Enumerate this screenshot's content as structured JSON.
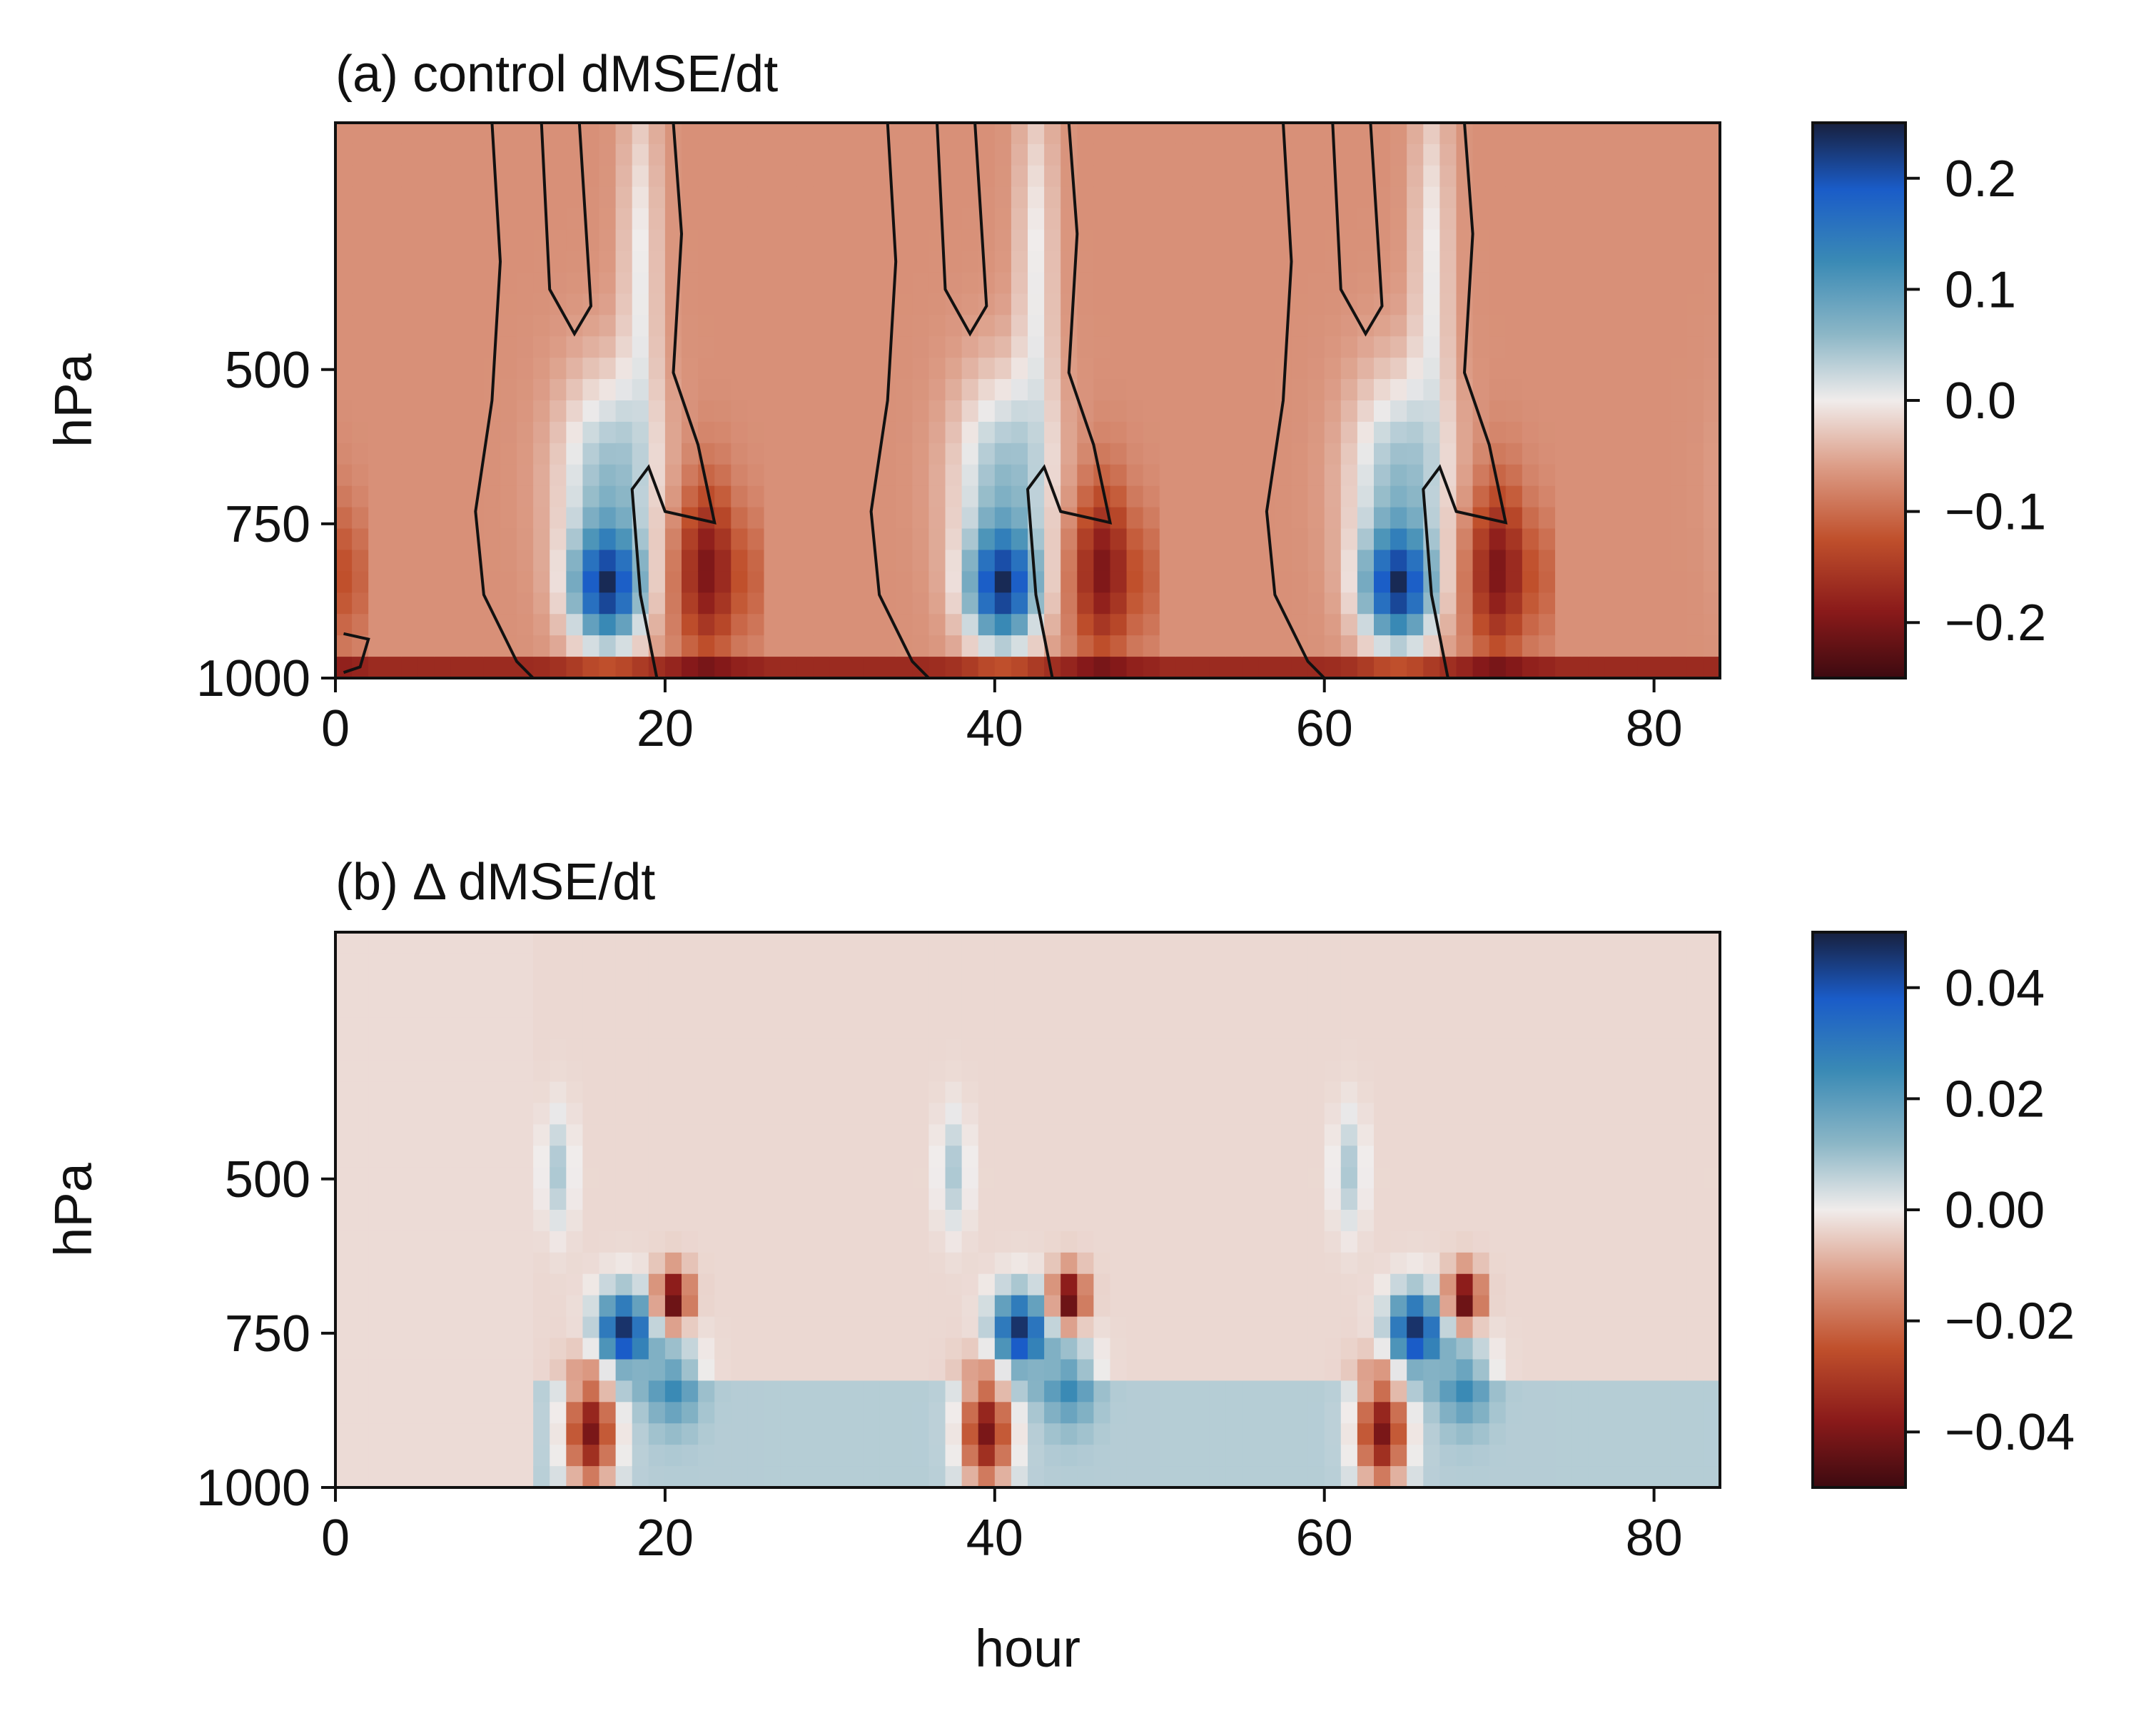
{
  "chart_data": [
    {
      "type": "heatmap",
      "title": "(a) control dMSE/dt",
      "xlabel": "",
      "ylabel": "hPa",
      "xlim": [
        0,
        84
      ],
      "ylim": [
        1000,
        100
      ],
      "yaxis": "pressure, inverted (1000 at bottom)",
      "x_ticks": [
        "0",
        "20",
        "40",
        "60",
        "80"
      ],
      "y_ticks": [
        "500",
        "750",
        "1000"
      ],
      "colorbar": {
        "range": [
          -0.25,
          0.25
        ],
        "ticks": [
          "0.2",
          "0.1",
          "0.0",
          "−0.1",
          "−0.2"
        ],
        "colormap": "diverging dark-red / white / dark-blue"
      },
      "contour": "zero line drawn in black",
      "features": [
        {
          "hours": [
            12,
            20
          ],
          "levels": [
            650,
            1000
          ],
          "value": 0.25,
          "note": "strong positive core ~850 hPa"
        },
        {
          "hours": [
            36,
            44
          ],
          "levels": [
            650,
            1000
          ],
          "value": 0.25,
          "note": "strong positive core ~850 hPa"
        },
        {
          "hours": [
            60,
            68
          ],
          "levels": [
            650,
            1000
          ],
          "value": 0.25,
          "note": "strong positive core ~850 hPa"
        },
        {
          "hours": [
            20,
            34
          ],
          "levels": [
            750,
            1000
          ],
          "value": -0.12,
          "note": "negative lower-tropospheric layer"
        },
        {
          "hours": [
            44,
            58
          ],
          "levels": [
            750,
            1000
          ],
          "value": -0.12,
          "note": "negative lower-tropospheric layer"
        },
        {
          "hours": [
            68,
            84
          ],
          "levels": [
            750,
            1000
          ],
          "value": -0.12,
          "note": "negative lower-tropospheric layer"
        }
      ]
    },
    {
      "type": "heatmap",
      "title": "(b) Δ dMSE/dt",
      "xlabel": "hour",
      "ylabel": "hPa",
      "xlim": [
        0,
        84
      ],
      "ylim": [
        1000,
        100
      ],
      "x_ticks": [
        "0",
        "20",
        "40",
        "60",
        "80"
      ],
      "y_ticks": [
        "500",
        "750",
        "1000"
      ],
      "colorbar": {
        "range": [
          -0.05,
          0.05
        ],
        "ticks": [
          "0.04",
          "0.02",
          "0.00",
          "−0.02",
          "−0.04"
        ],
        "colormap": "diverging dark-red / white / dark-blue"
      },
      "features": [
        {
          "hours": [
            13,
            18
          ],
          "levels": [
            850,
            1000
          ],
          "value": -0.05,
          "note": "strong negative near surface"
        },
        {
          "hours": [
            15,
            21
          ],
          "levels": [
            750,
            900
          ],
          "value": 0.05,
          "note": "strong positive ~800 hPa"
        },
        {
          "hours": [
            20,
            22
          ],
          "levels": [
            750,
            800
          ],
          "value": -0.05
        },
        {
          "hours": [
            37,
            42
          ],
          "levels": [
            850,
            1000
          ],
          "value": -0.04
        },
        {
          "hours": [
            39,
            43
          ],
          "levels": [
            750,
            850
          ],
          "value": 0.05
        },
        {
          "hours": [
            61,
            66
          ],
          "levels": [
            850,
            1000
          ],
          "value": -0.05
        },
        {
          "hours": [
            63,
            68
          ],
          "levels": [
            750,
            850
          ],
          "value": 0.05
        },
        {
          "hours": [
            20,
            84
          ],
          "levels": [
            900,
            1000
          ],
          "value": 0.01,
          "note": "weak positive near surface"
        }
      ]
    }
  ]
}
